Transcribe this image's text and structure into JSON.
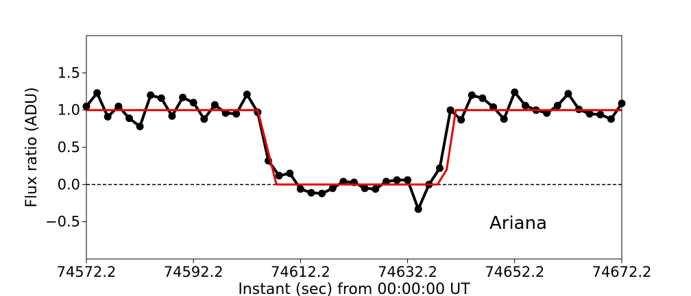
{
  "chart_data": {
    "type": "line",
    "xlabel": "Instant (sec) from 00:00:00 UT",
    "ylabel": "Flux ratio (ADU)",
    "annotation": "Ariana",
    "xlim": [
      74572.2,
      74672.2
    ],
    "ylim": [
      -1.0,
      2.0
    ],
    "x_ticks": [
      74572.2,
      74592.2,
      74612.2,
      74632.2,
      74652.2,
      74672.2
    ],
    "x_tick_labels": [
      "74572.2",
      "74592.2",
      "74612.2",
      "74632.2",
      "74652.2",
      "74672.2"
    ],
    "y_ticks": [
      -0.5,
      0.0,
      0.5,
      1.0,
      1.5
    ],
    "y_tick_labels": [
      "−0.5",
      "0.0",
      "0.5",
      "1.0",
      "1.5"
    ],
    "reference_line": {
      "y": 0.0,
      "style": "dashed",
      "color": "#000000"
    },
    "series": [
      {
        "style": "black-line-markers",
        "color": "#000000",
        "x": [
          74572.2,
          74574.2,
          74576.2,
          74578.2,
          74580.2,
          74582.2,
          74584.2,
          74586.2,
          74588.2,
          74590.2,
          74592.2,
          74594.2,
          74596.2,
          74598.2,
          74600.2,
          74602.2,
          74604.2,
          74606.2,
          74608.2,
          74610.2,
          74612.2,
          74614.2,
          74616.2,
          74618.2,
          74620.2,
          74622.2,
          74624.2,
          74626.2,
          74628.2,
          74630.2,
          74632.2,
          74634.2,
          74636.2,
          74638.2,
          74640.2,
          74642.2,
          74644.2,
          74646.2,
          74648.2,
          74650.2,
          74652.2,
          74654.2,
          74656.2,
          74658.2,
          74660.2,
          74662.2,
          74664.2,
          74666.2,
          74668.2,
          74670.2,
          74672.2
        ],
        "y": [
          1.05,
          1.23,
          0.91,
          1.05,
          0.89,
          0.78,
          1.2,
          1.16,
          0.92,
          1.17,
          1.1,
          0.88,
          1.07,
          0.96,
          0.95,
          1.21,
          0.97,
          0.32,
          0.12,
          0.15,
          -0.06,
          -0.11,
          -0.12,
          -0.05,
          0.04,
          0.03,
          -0.05,
          -0.06,
          0.04,
          0.06,
          0.06,
          -0.33,
          0.0,
          0.22,
          1.0,
          0.87,
          1.2,
          1.16,
          1.04,
          0.88,
          1.24,
          1.06,
          1.0,
          0.96,
          1.06,
          1.22,
          1.01,
          0.95,
          0.94,
          0.88,
          1.09
        ]
      },
      {
        "style": "red-model",
        "color": "#e60000",
        "x": [
          74572.2,
          74604.2,
          74607.7,
          74637.8,
          74639.5,
          74641.2,
          74672.2
        ],
        "y": [
          1.0,
          1.0,
          0.0,
          0.0,
          0.2,
          1.0,
          1.0
        ]
      }
    ]
  }
}
